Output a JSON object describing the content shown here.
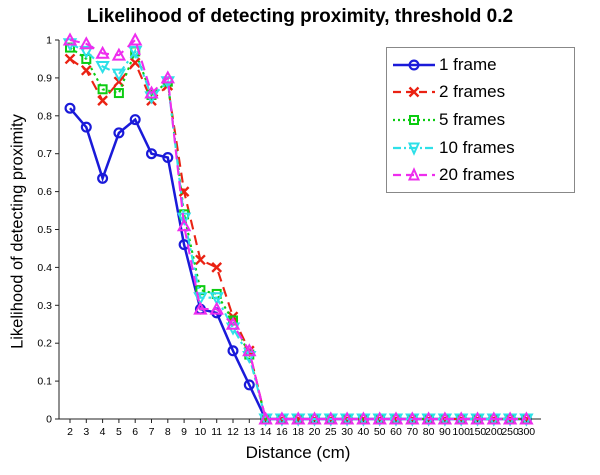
{
  "figure": {
    "title": "Likelihood of detecting proximity, threshold 0.2",
    "xlabel": "Distance (cm)",
    "ylabel": "Likelihood of detecting proximity"
  },
  "chart_data": {
    "type": "line",
    "title": "Likelihood of detecting proximity, threshold 0.2",
    "xlabel": "Distance (cm)",
    "ylabel": "Likelihood of detecting proximity",
    "x_scale": "categorical",
    "categories": [
      "2",
      "3",
      "4",
      "5",
      "6",
      "7",
      "8",
      "9",
      "10",
      "11",
      "12",
      "13",
      "14",
      "16",
      "18",
      "20",
      "25",
      "30",
      "40",
      "50",
      "60",
      "70",
      "80",
      "90",
      "100",
      "150",
      "200",
      "250",
      "300"
    ],
    "ylim": [
      0,
      1
    ],
    "ytick_labels": [
      "0",
      "0.1",
      "0.2",
      "0.3",
      "0.4",
      "0.5",
      "0.6",
      "0.7",
      "0.8",
      "0.9",
      "1"
    ],
    "grid": false,
    "legend_position": "upper-right",
    "background": "#ffffff",
    "axis_color": "#222222",
    "series": [
      {
        "name": "1 frame",
        "color": "#1a1ad9",
        "line_style": "solid",
        "marker": "circle",
        "values": [
          0.82,
          0.77,
          0.635,
          0.755,
          0.79,
          0.7,
          0.69,
          0.46,
          0.29,
          0.28,
          0.18,
          0.09,
          0,
          0,
          0,
          0,
          0,
          0,
          0,
          0,
          0,
          0,
          0,
          0,
          0,
          0,
          0,
          0,
          0
        ]
      },
      {
        "name": "2 frames",
        "color": "#ea2213",
        "line_style": "dashed",
        "marker": "x",
        "values": [
          0.95,
          0.92,
          0.84,
          0.89,
          0.94,
          0.84,
          0.88,
          0.6,
          0.42,
          0.4,
          0.27,
          0.18,
          0,
          0,
          0,
          0,
          0,
          0,
          0,
          0,
          0,
          0,
          0,
          0,
          0,
          0,
          0,
          0,
          0
        ]
      },
      {
        "name": "5 frames",
        "color": "#0ccc12",
        "line_style": "dotted",
        "marker": "square",
        "values": [
          0.98,
          0.95,
          0.87,
          0.86,
          0.97,
          0.855,
          0.89,
          0.54,
          0.34,
          0.33,
          0.26,
          0.17,
          0,
          0,
          0,
          0,
          0,
          0,
          0,
          0,
          0,
          0,
          0,
          0,
          0,
          0,
          0,
          0,
          0
        ]
      },
      {
        "name": "10 frames",
        "color": "#2ee0e8",
        "line_style": "dashdot",
        "marker": "triangle-down",
        "values": [
          0.99,
          0.97,
          0.93,
          0.91,
          0.97,
          0.85,
          0.89,
          0.53,
          0.32,
          0.32,
          0.24,
          0.165,
          0,
          0,
          0,
          0,
          0,
          0,
          0,
          0,
          0,
          0,
          0,
          0,
          0,
          0,
          0,
          0,
          0
        ]
      },
      {
        "name": "20 frames",
        "color": "#ee2dee",
        "line_style": "dashed",
        "marker": "triangle-up",
        "values": [
          1.0,
          0.99,
          0.965,
          0.96,
          1.0,
          0.86,
          0.9,
          0.51,
          0.29,
          0.29,
          0.25,
          0.18,
          0,
          0,
          0,
          0,
          0,
          0,
          0,
          0,
          0,
          0,
          0,
          0,
          0,
          0,
          0,
          0,
          0
        ]
      }
    ]
  }
}
